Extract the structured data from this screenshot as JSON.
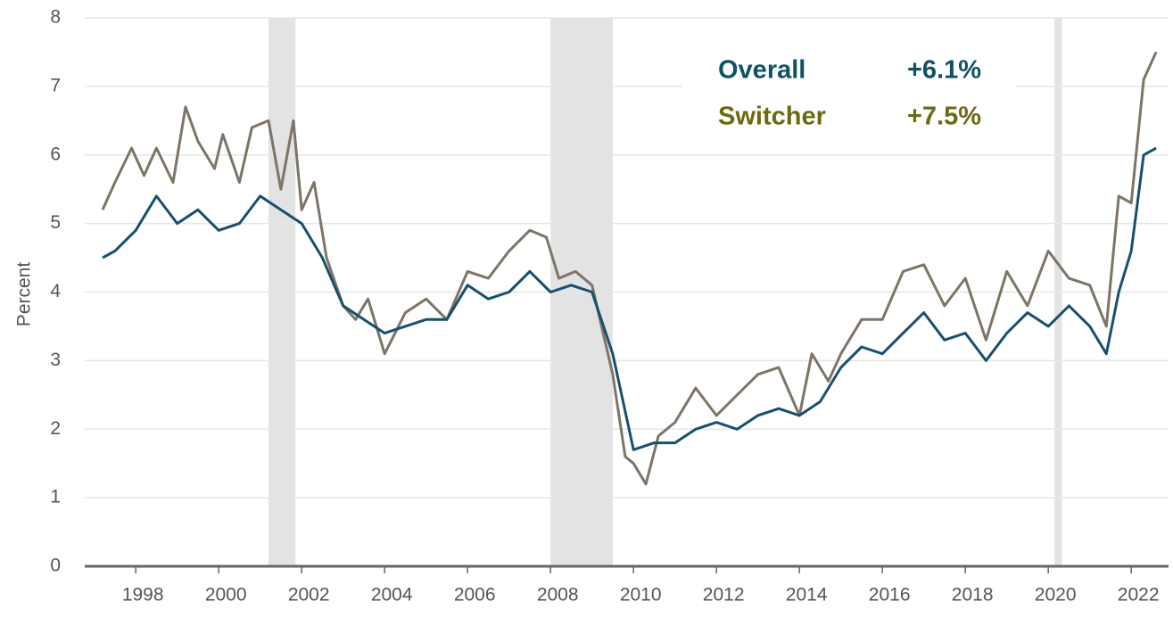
{
  "chart_data": {
    "type": "line",
    "y_label": "Percent",
    "xlim": [
      1996.77,
      2022.9
    ],
    "xticks": [
      1998,
      2000,
      2002,
      2004,
      2006,
      2008,
      2010,
      2012,
      2014,
      2016,
      2018,
      2020,
      2022
    ],
    "ylim": [
      0,
      8
    ],
    "yticks": [
      0,
      1,
      2,
      3,
      4,
      5,
      6,
      7,
      8
    ],
    "grid": true,
    "shaded_regions": [
      [
        2001.2,
        2001.85
      ],
      [
        2008.0,
        2009.5
      ],
      [
        2020.15,
        2020.33
      ]
    ],
    "series": [
      {
        "name": "Overall",
        "color": "#17506e",
        "text_color": "#0f5266",
        "end_label": "+6.1%",
        "x": [
          1997.2,
          1997.5,
          1998.0,
          1998.5,
          1999.0,
          1999.5,
          2000.0,
          2000.5,
          2001.0,
          2001.5,
          2002.0,
          2002.5,
          2003.0,
          2003.5,
          2004.0,
          2004.5,
          2005.0,
          2005.5,
          2006.0,
          2006.5,
          2007.0,
          2007.5,
          2008.0,
          2008.5,
          2009.0,
          2009.5,
          2010.0,
          2010.5,
          2011.0,
          2011.5,
          2012.0,
          2012.5,
          2013.0,
          2013.5,
          2014.0,
          2014.5,
          2015.0,
          2015.5,
          2016.0,
          2016.5,
          2017.0,
          2017.5,
          2018.0,
          2018.5,
          2019.0,
          2019.5,
          2020.0,
          2020.5,
          2021.0,
          2021.4,
          2021.7,
          2022.0,
          2022.3,
          2022.6
        ],
        "values": [
          4.5,
          4.6,
          4.9,
          5.4,
          5.0,
          5.2,
          4.9,
          5.0,
          5.4,
          5.2,
          5.0,
          4.5,
          3.8,
          3.6,
          3.4,
          3.5,
          3.6,
          3.6,
          4.1,
          3.9,
          4.0,
          4.3,
          4.0,
          4.1,
          4.0,
          3.1,
          1.7,
          1.8,
          1.8,
          2.0,
          2.1,
          2.0,
          2.2,
          2.3,
          2.2,
          2.4,
          2.9,
          3.2,
          3.1,
          3.4,
          3.7,
          3.3,
          3.4,
          3.0,
          3.4,
          3.7,
          3.5,
          3.8,
          3.5,
          3.1,
          4.0,
          4.6,
          6.0,
          6.1
        ]
      },
      {
        "name": "Switcher",
        "color": "#7e7467",
        "text_color": "#6b6a12",
        "end_label": "+7.5%",
        "x": [
          1997.2,
          1997.5,
          1997.9,
          1998.2,
          1998.5,
          1998.9,
          1999.2,
          1999.5,
          1999.9,
          2000.1,
          2000.5,
          2000.8,
          2001.2,
          2001.5,
          2001.8,
          2002.0,
          2002.3,
          2002.6,
          2003.0,
          2003.3,
          2003.6,
          2004.0,
          2004.5,
          2005.0,
          2005.5,
          2006.0,
          2006.5,
          2007.0,
          2007.5,
          2007.9,
          2008.2,
          2008.6,
          2009.0,
          2009.5,
          2009.8,
          2010.0,
          2010.3,
          2010.6,
          2011.0,
          2011.5,
          2012.0,
          2012.5,
          2013.0,
          2013.5,
          2014.0,
          2014.3,
          2014.7,
          2015.0,
          2015.5,
          2016.0,
          2016.5,
          2017.0,
          2017.5,
          2018.0,
          2018.5,
          2019.0,
          2019.5,
          2020.0,
          2020.5,
          2021.0,
          2021.4,
          2021.7,
          2022.0,
          2022.3,
          2022.6
        ],
        "values": [
          5.2,
          5.6,
          6.1,
          5.7,
          6.1,
          5.6,
          6.7,
          6.2,
          5.8,
          6.3,
          5.6,
          6.4,
          6.5,
          5.5,
          6.5,
          5.2,
          5.6,
          4.5,
          3.8,
          3.6,
          3.9,
          3.1,
          3.7,
          3.9,
          3.6,
          4.3,
          4.2,
          4.6,
          4.9,
          4.8,
          4.2,
          4.3,
          4.1,
          2.8,
          1.6,
          1.5,
          1.2,
          1.9,
          2.1,
          2.6,
          2.2,
          2.5,
          2.8,
          2.9,
          2.2,
          3.1,
          2.7,
          3.1,
          3.6,
          3.6,
          4.3,
          4.4,
          3.8,
          4.2,
          3.3,
          4.3,
          3.8,
          4.6,
          4.2,
          4.1,
          3.5,
          5.4,
          5.3,
          7.1,
          7.5
        ]
      }
    ]
  }
}
